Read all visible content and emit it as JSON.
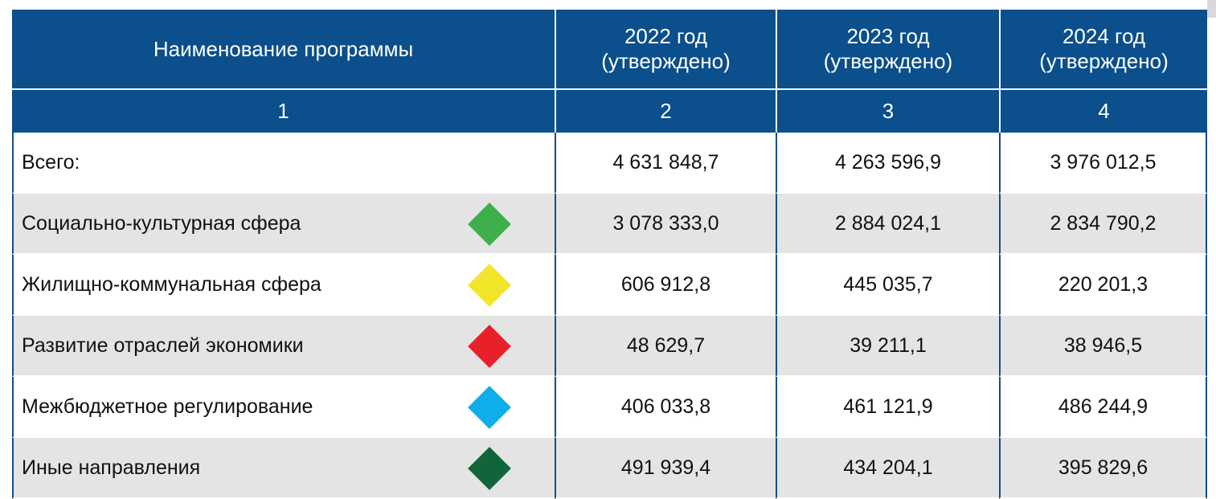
{
  "table": {
    "header": [
      "Наименование программы",
      "2022 год\n(утверждено)",
      "2023 год\n(утверждено)",
      "2024 год\n(утверждено)"
    ],
    "numbers": [
      "1",
      "2",
      "3",
      "4"
    ],
    "rows": [
      {
        "name": "Всего:",
        "values": [
          "4 631 848,7",
          "4 263 596,9",
          "3 976 012,5"
        ]
      },
      {
        "name": "Социально-культурная сфера",
        "color": "#3dae49",
        "values": [
          "3 078 333,0",
          "2 884 024,1",
          "2 834 790,2"
        ]
      },
      {
        "name": "Жилищно-коммунальная сфера",
        "color": "#f2e62a",
        "values": [
          "606 912,8",
          "445 035,7",
          "220 201,3"
        ]
      },
      {
        "name": "Развитие отраслей экономики",
        "color": "#e8202a",
        "values": [
          "48 629,7",
          "39 211,1",
          "38 946,5"
        ]
      },
      {
        "name": "Межбюджетное регулирование",
        "color": "#0eaeea",
        "values": [
          "406 033,8",
          "461 121,9",
          "486 244,9"
        ]
      },
      {
        "name": "Иные направления",
        "color": "#10653a",
        "values": [
          "491 939,4",
          "434 204,1",
          "395 829,6"
        ]
      }
    ]
  }
}
